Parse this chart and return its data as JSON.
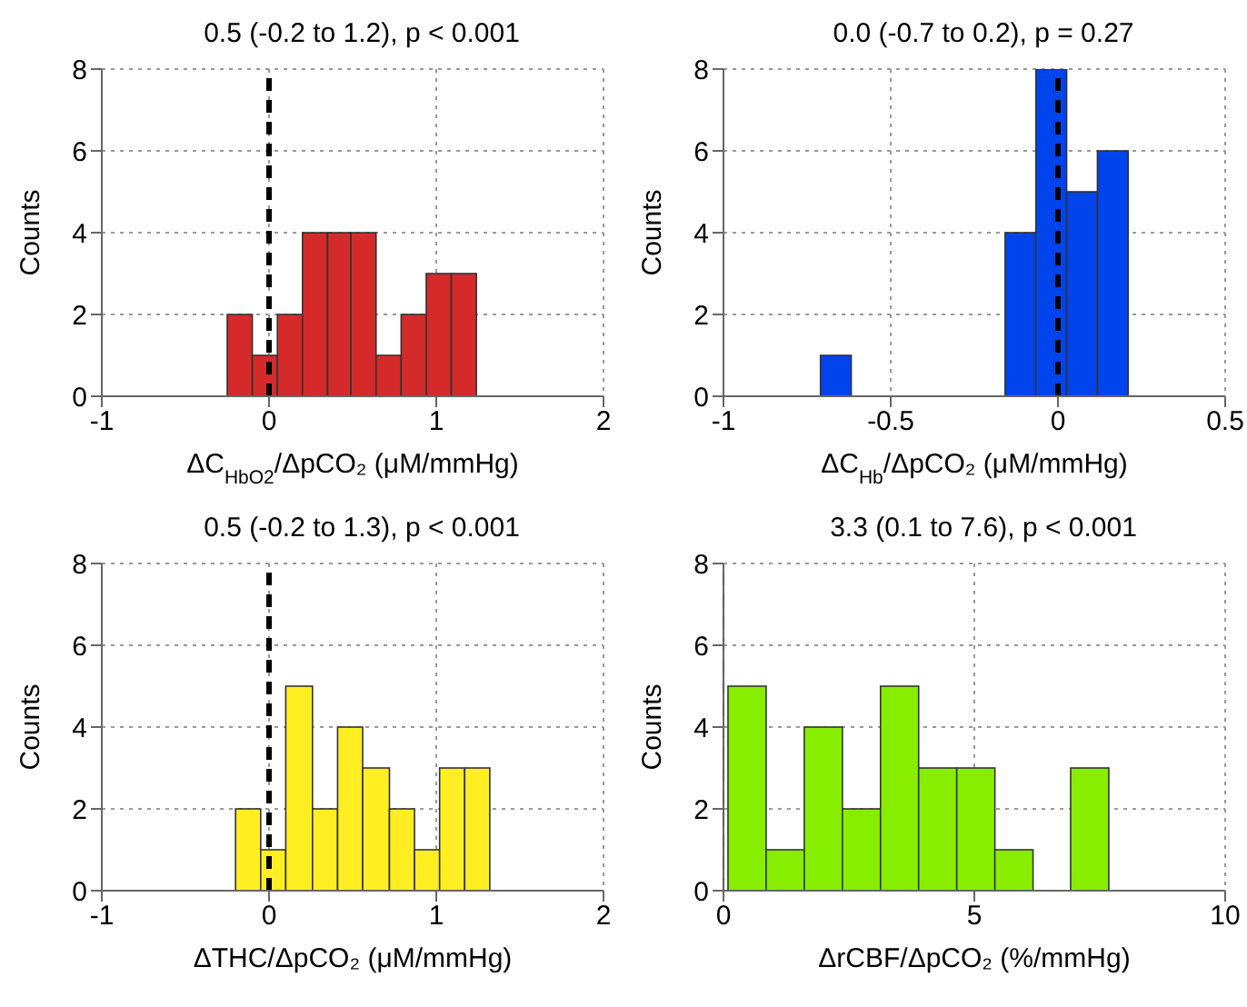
{
  "chart_data": [
    {
      "type": "histogram",
      "title": "0.5 (-0.2 to 1.2), p < 0.001",
      "xlabel": "ΔC$_{HbO2}$/ΔpCO₂ (μM/mmHg)",
      "ylabel": "Counts",
      "color": "#d42a2a",
      "bins": [
        -0.25,
        -0.1,
        0.05,
        0.2,
        0.35,
        0.49,
        0.64,
        0.79,
        0.94,
        1.09,
        1.24
      ],
      "values": [
        2,
        1,
        2,
        4,
        4,
        4,
        1,
        2,
        3,
        3
      ],
      "xlim": [
        -1,
        2
      ],
      "xticks": [
        -1,
        0,
        1,
        2
      ],
      "ylim": [
        0,
        8
      ],
      "yticks": [
        0,
        2,
        4,
        6,
        8
      ],
      "grid": true,
      "ref_lines": [
        {
          "axis": "x",
          "value": 0,
          "color": "#000000",
          "line_style": "dashed"
        }
      ]
    },
    {
      "type": "histogram",
      "title": "0.0 (-0.7 to 0.2), p = 0.27",
      "xlabel": "ΔC$_{Hb}$/ΔpCO₂ (μM/mmHg)",
      "ylabel": "Counts",
      "color": "#0044ee",
      "bins": [
        -0.71,
        -0.618,
        -0.526,
        -0.434,
        -0.342,
        -0.25,
        -0.158,
        -0.066,
        0.026,
        0.118,
        0.21
      ],
      "values": [
        1,
        0,
        0,
        0,
        0,
        0,
        4,
        8,
        5,
        6
      ],
      "xlim": [
        -1,
        0.5
      ],
      "xticks": [
        -1,
        -0.5,
        0,
        0.5
      ],
      "ylim": [
        0,
        8
      ],
      "yticks": [
        0,
        2,
        4,
        6,
        8
      ],
      "grid": true,
      "ref_lines": [
        {
          "axis": "x",
          "value": 0,
          "color": "#000000",
          "line_style": "dashed"
        }
      ]
    },
    {
      "type": "histogram",
      "title": "0.5 (-0.2 to 1.3), p < 0.001",
      "xlabel": "ΔTHC/ΔpCO₂ (μM/mmHg)",
      "ylabel": "Counts",
      "color": "#ffee22",
      "bins": [
        -0.2,
        -0.05,
        0.1,
        0.26,
        0.41,
        0.56,
        0.72,
        0.87,
        1.02,
        1.17,
        1.32
      ],
      "values": [
        2,
        1,
        5,
        2,
        4,
        3,
        2,
        1,
        3,
        3
      ],
      "xlim": [
        -1,
        2
      ],
      "xticks": [
        -1,
        0,
        1,
        2
      ],
      "ylim": [
        0,
        8
      ],
      "yticks": [
        0,
        2,
        4,
        6,
        8
      ],
      "grid": true,
      "ref_lines": [
        {
          "axis": "x",
          "value": 0,
          "color": "#000000",
          "line_style": "dashed"
        }
      ]
    },
    {
      "type": "histogram",
      "title": "3.3 (0.1 to 7.6), p < 0.001",
      "xlabel": "ΔrCBF/ΔpCO₂ (%/mmHg)",
      "ylabel": "Counts",
      "color": "#88ee00",
      "bins": [
        0.09,
        0.85,
        1.61,
        2.37,
        3.13,
        3.89,
        4.65,
        5.41,
        6.17,
        6.92,
        7.68
      ],
      "values": [
        5,
        1,
        4,
        2,
        5,
        3,
        3,
        1,
        0,
        3
      ],
      "xlim": [
        0,
        10
      ],
      "xticks": [
        0,
        5,
        10
      ],
      "ylim": [
        0,
        8
      ],
      "yticks": [
        0,
        2,
        4,
        6,
        8
      ],
      "grid": true,
      "ref_lines": [
        {
          "axis": "x",
          "value": 0,
          "color": "#888888",
          "line_style": "dashed"
        }
      ]
    }
  ]
}
